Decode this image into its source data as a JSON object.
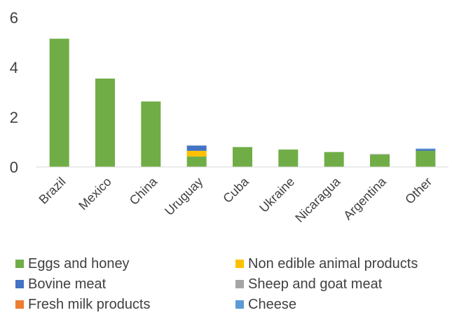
{
  "chart_data": {
    "type": "bar",
    "stacked": true,
    "categories": [
      "Brazil",
      "Mexico",
      "China",
      "Uruguay",
      "Cuba",
      "Ukraine",
      "Nicaragua",
      "Argentina",
      "Other"
    ],
    "series": [
      {
        "name": "Eggs and honey",
        "color": "#70AD47",
        "values": [
          5.15,
          3.55,
          2.63,
          0.42,
          0.8,
          0.7,
          0.6,
          0.5,
          0.65
        ]
      },
      {
        "name": "Non edible animal products",
        "color": "#FFC000",
        "values": [
          0,
          0,
          0,
          0.23,
          0,
          0,
          0,
          0,
          0
        ]
      },
      {
        "name": "Bovine meat",
        "color": "#4472C4",
        "values": [
          0,
          0,
          0,
          0.21,
          0,
          0,
          0,
          0,
          0.06
        ]
      },
      {
        "name": "Sheep and goat meat",
        "color": "#A5A5A5",
        "values": [
          0,
          0,
          0,
          0,
          0,
          0,
          0,
          0.02,
          0
        ]
      },
      {
        "name": "Fresh milk  products",
        "color": "#ED7D31",
        "values": [
          0,
          0,
          0,
          0,
          0,
          0,
          0,
          0,
          0
        ]
      },
      {
        "name": "Cheese",
        "color": "#5B9BD5",
        "values": [
          0,
          0,
          0,
          0,
          0,
          0,
          0,
          0,
          0.03
        ]
      }
    ],
    "yticks": [
      0,
      2,
      4,
      6
    ],
    "ylim": [
      0,
      6
    ],
    "grid": false,
    "legend_position": "bottom"
  }
}
